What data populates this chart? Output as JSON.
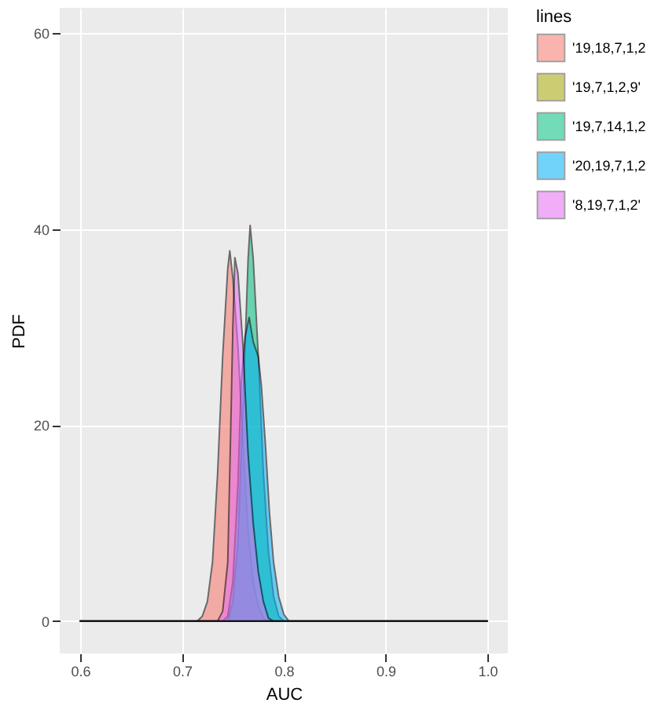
{
  "chart_data": {
    "type": "area",
    "xlabel": "AUC",
    "ylabel": "PDF",
    "legend_title": "lines",
    "legend": "top right",
    "grid": true,
    "xlim": [
      0.58,
      1.02
    ],
    "ylim": [
      -3.3,
      62.6
    ],
    "xticks": [
      0.6,
      0.7,
      0.8,
      0.9,
      {
        "value": 1.0,
        "label": "1.0"
      }
    ],
    "yticks": [
      0,
      20,
      40,
      60
    ],
    "series": [
      {
        "name": "'19,18,7,1,2",
        "color": "#f8766d",
        "x": [
          0.6,
          0.715,
          0.72,
          0.725,
          0.73,
          0.735,
          0.74,
          0.745,
          0.747,
          0.75,
          0.755,
          0.76,
          0.765,
          0.77,
          0.775,
          0.78,
          0.785,
          1.0
        ],
        "values": [
          0,
          0,
          0.5,
          2,
          6,
          15,
          27,
          36,
          37.8,
          35,
          28,
          18,
          9,
          4,
          1.5,
          0.3,
          0,
          0
        ]
      },
      {
        "name": "'19,7,1,2,9'",
        "color": "#a3a500"
      },
      {
        "name": "'19,7,14,1,2",
        "color": "#00bf7d",
        "x": [
          0.6,
          0.745,
          0.75,
          0.755,
          0.76,
          0.765,
          0.767,
          0.77,
          0.775,
          0.78,
          0.785,
          0.79,
          0.795,
          0.8,
          1.0
        ],
        "values": [
          0,
          0,
          2,
          8,
          22,
          37,
          40.4,
          37,
          27,
          15,
          7,
          2.5,
          0.5,
          0,
          0
        ]
      },
      {
        "name": "'20,19,7,1,2",
        "color": "#00b0f6",
        "x": [
          0.6,
          0.74,
          0.745,
          0.75,
          0.755,
          0.758,
          0.762,
          0.766,
          0.77,
          0.775,
          0.778,
          0.782,
          0.786,
          0.79,
          0.795,
          0.8,
          0.805,
          1.0
        ],
        "values": [
          0,
          0,
          0.5,
          4,
          14,
          24,
          29,
          31,
          28.5,
          27,
          24,
          18,
          11,
          6,
          2.5,
          0.7,
          0,
          0
        ]
      },
      {
        "name": "'8,19,7,1,2'",
        "color": "#e76bf3",
        "x": [
          0.6,
          0.735,
          0.74,
          0.745,
          0.748,
          0.75,
          0.752,
          0.755,
          0.76,
          0.765,
          0.77,
          0.775,
          0.78,
          0.785,
          0.79,
          1.0
        ],
        "values": [
          0,
          0,
          1,
          6,
          20,
          30,
          37.1,
          35.5,
          28,
          17,
          10,
          5,
          2,
          0.3,
          0,
          0
        ]
      }
    ]
  }
}
